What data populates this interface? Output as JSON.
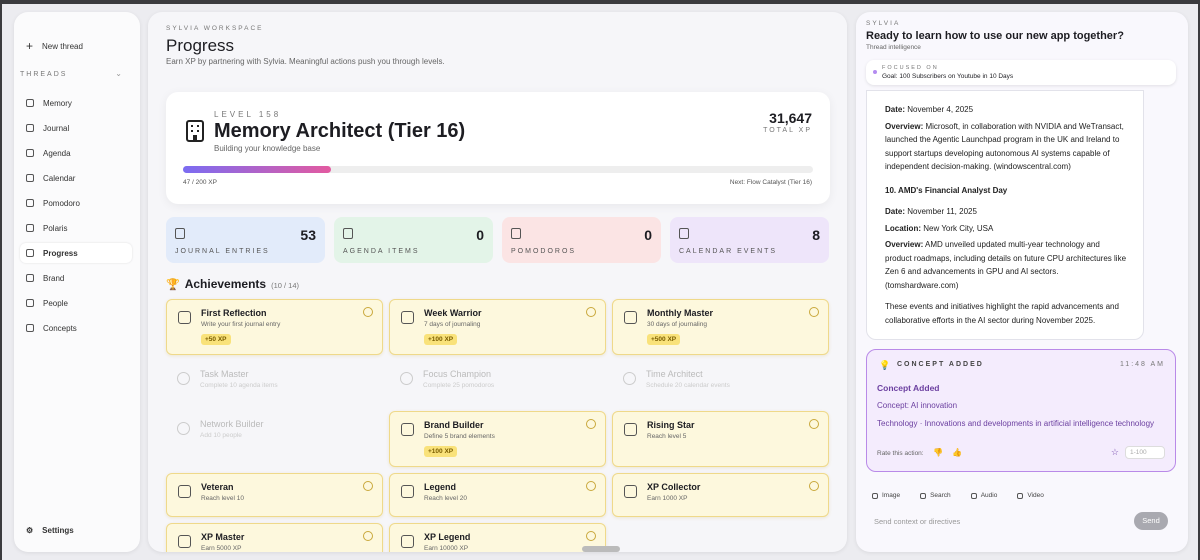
{
  "sidebar": {
    "new_thread": "New thread",
    "threads_label": "THREADS",
    "nav": [
      "Memory",
      "Journal",
      "Agenda",
      "Calendar",
      "Pomodoro",
      "Polaris",
      "Progress",
      "Brand",
      "People",
      "Concepts"
    ],
    "active": 6,
    "settings": "Settings"
  },
  "main": {
    "eyebrow": "SYLVIA WORKSPACE",
    "title": "Progress",
    "subtitle": "Earn XP by partnering with Sylvia. Meaningful actions push you through levels.",
    "level": {
      "level": "LEVEL 158",
      "name": "Memory Architect (Tier 16)",
      "tagline": "Building your knowledge base",
      "total": "31,647",
      "total_label": "TOTAL XP",
      "progress": "47 / 200 XP",
      "next": "Next: Flow Catalyst (Tier 16)"
    },
    "stats": [
      {
        "value": "53",
        "label": "JOURNAL ENTRIES",
        "color": "#e2ebfa"
      },
      {
        "value": "0",
        "label": "AGENDA ITEMS",
        "color": "#e3f4e8"
      },
      {
        "value": "0",
        "label": "POMODOROS",
        "color": "#fbe4e4"
      },
      {
        "value": "8",
        "label": "CALENDAR EVENTS",
        "color": "#eee5fa"
      }
    ],
    "achievements": {
      "title": "Achievements",
      "count": "(10 / 14)",
      "items": [
        {
          "name": "First Reflection",
          "desc": "Write your first journal entry",
          "xp": "+50 XP",
          "unlocked": true
        },
        {
          "name": "Week Warrior",
          "desc": "7 days of journaling",
          "xp": "+100 XP",
          "unlocked": true
        },
        {
          "name": "Monthly Master",
          "desc": "30 days of journaling",
          "xp": "+500 XP",
          "unlocked": true
        },
        {
          "name": "Task Master",
          "desc": "Complete 10 agenda items",
          "unlocked": false
        },
        {
          "name": "Focus Champion",
          "desc": "Complete 25 pomodoros",
          "unlocked": false
        },
        {
          "name": "Time Architect",
          "desc": "Schedule 20 calendar events",
          "unlocked": false
        },
        {
          "name": "Network Builder",
          "desc": "Add 10 people",
          "unlocked": false
        },
        {
          "name": "Brand Builder",
          "desc": "Define 5 brand elements",
          "xp": "+100 XP",
          "unlocked": true
        },
        {
          "name": "Rising Star",
          "desc": "Reach level 5",
          "unlocked": true
        },
        {
          "name": "Veteran",
          "desc": "Reach level 10",
          "unlocked": true
        },
        {
          "name": "Legend",
          "desc": "Reach level 20",
          "unlocked": true
        },
        {
          "name": "XP Collector",
          "desc": "Earn 1000 XP",
          "unlocked": true
        },
        {
          "name": "XP Master",
          "desc": "Earn 5000 XP",
          "unlocked": true
        },
        {
          "name": "XP Legend",
          "desc": "Earn 10000 XP",
          "unlocked": true
        }
      ]
    }
  },
  "thread": {
    "eyebrow": "SYLVIA",
    "title": "Ready to learn how to use our new app together?",
    "subtitle": "Thread intelligence",
    "focus_label": "FOCUSED ON",
    "focus": "Goal: 100 Subscribers on Youtube in 10 Days",
    "message": [
      {
        "label": "Date:",
        "text": "November 4, 2025"
      },
      {
        "label": "Overview:",
        "text": "Microsoft, in collaboration with NVIDIA and WeTransact, launched the Agentic Launchpad program in the UK and Ireland to support startups developing autonomous AI systems capable of independent decision-making. (windowscentral.com)"
      },
      {
        "heading": "10. AMD's Financial Analyst Day"
      },
      {
        "label": "Date:",
        "text": "November 11, 2025"
      },
      {
        "label": "Location:",
        "text": "New York City, USA"
      },
      {
        "label": "Overview:",
        "text": "AMD unveiled updated multi-year technology and product roadmaps, including details on future CPU architectures like Zen 6 and advancements in GPU and AI sectors. (tomshardware.com)"
      },
      {
        "text": "These events and initiatives highlight the rapid advancements and collaborative efforts in the AI sector during November 2025."
      }
    ],
    "concept": {
      "label": "CONCEPT ADDED",
      "time": "11:48 AM",
      "heading": "Concept Added",
      "concept": "Concept: AI innovation",
      "detail": "Technology · Innovations and developments in artificial intelligence technology",
      "rate": "Rate this action:",
      "score_placeholder": "1-100"
    },
    "tools": [
      "Image",
      "Search",
      "Audio",
      "Video"
    ],
    "input_placeholder": "Send context or directives",
    "send": "Send"
  }
}
